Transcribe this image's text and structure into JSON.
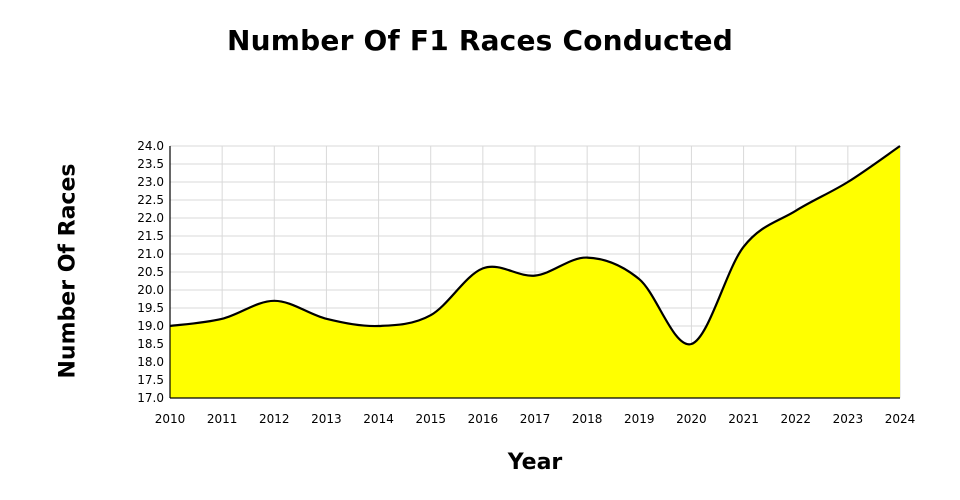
{
  "chart_data": {
    "type": "area",
    "title": "Number Of F1 Races Conducted",
    "xlabel": "Year",
    "ylabel": "Number Of Races",
    "x": [
      "2010",
      "2011",
      "2012",
      "2013",
      "2014",
      "2015",
      "2016",
      "2017",
      "2018",
      "2019",
      "2020",
      "2021",
      "2022",
      "2023",
      "2024"
    ],
    "series": [
      {
        "name": "Number Of Races",
        "values": [
          19,
          19.2,
          19.7,
          19.2,
          19,
          19.3,
          20.6,
          20.4,
          20.9,
          20.3,
          18.5,
          21.2,
          22.2,
          23,
          24
        ]
      }
    ],
    "ylim": [
      17.0,
      24.0
    ],
    "ystep": 0.5,
    "grid": true,
    "fill_color": "#ffff00",
    "line_color": "#000000",
    "grid_color": "#d9d9d9"
  }
}
